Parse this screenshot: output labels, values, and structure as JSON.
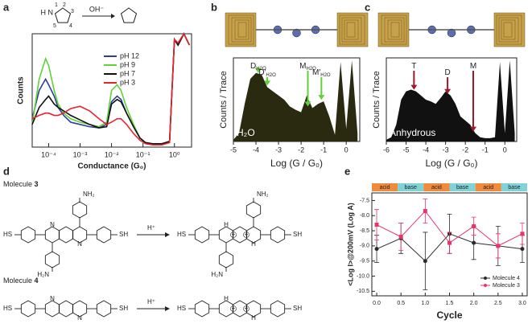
{
  "chart_data": [
    {
      "type": "line",
      "panel": "a",
      "xlabel": "Conductance (G₀)",
      "ylabel": "Counts",
      "xscale": "log",
      "reaction": {
        "reagent": "OH⁻",
        "atom_labels": [
          "1",
          "2",
          "3",
          "4",
          "5"
        ],
        "n": "N",
        "h": "H"
      },
      "x": [
        3e-05,
        5e-05,
        8e-05,
        0.0001,
        0.00015,
        0.0002,
        0.0003,
        0.0005,
        0.001,
        0.002,
        0.004,
        0.007,
        0.01,
        0.015,
        0.02,
        0.03,
        0.05,
        0.08,
        0.12,
        0.2,
        0.4,
        0.7,
        1,
        1.3,
        2,
        3
      ],
      "xlim": [
        3e-05,
        3.5
      ],
      "xticks": [
        {
          "value": 0.0001,
          "label": "10⁻⁴"
        },
        {
          "value": 0.001,
          "label": "10⁻³"
        },
        {
          "value": 0.01,
          "label": "10⁻²"
        },
        {
          "value": 0.1,
          "label": "10⁻¹"
        },
        {
          "value": 1,
          "label": "10⁰"
        }
      ],
      "ylim": [
        0,
        1
      ],
      "legend": "upper center",
      "series": [
        {
          "name": "pH 12",
          "color": "#2c3e9c",
          "values": [
            0.25,
            0.5,
            0.6,
            0.55,
            0.45,
            0.35,
            0.28,
            0.22,
            0.2,
            0.18,
            0.17,
            0.2,
            0.4,
            0.45,
            0.42,
            0.3,
            0.18,
            0.08,
            0.04,
            0.03,
            0.03,
            0.05,
            0.95,
            0.9,
            1,
            0.9
          ]
        },
        {
          "name": "pH 9",
          "color": "#5fd13a",
          "values": [
            0.2,
            0.6,
            0.78,
            0.72,
            0.5,
            0.38,
            0.3,
            0.25,
            0.22,
            0.2,
            0.18,
            0.22,
            0.5,
            0.55,
            0.5,
            0.35,
            0.2,
            0.08,
            0.04,
            0.03,
            0.03,
            0.05,
            0.95,
            0.9,
            1,
            0.9
          ]
        },
        {
          "name": "pH 7",
          "color": "#111111",
          "values": [
            0.2,
            0.35,
            0.42,
            0.45,
            0.38,
            0.35,
            0.32,
            0.28,
            0.24,
            0.2,
            0.17,
            0.18,
            0.38,
            0.42,
            0.4,
            0.3,
            0.18,
            0.08,
            0.04,
            0.03,
            0.03,
            0.05,
            0.95,
            0.9,
            1,
            0.9
          ]
        },
        {
          "name": "pH 3",
          "color": "#e8232e",
          "values": [
            0.25,
            0.28,
            0.3,
            0.3,
            0.28,
            0.28,
            0.3,
            0.34,
            0.36,
            0.32,
            0.25,
            0.2,
            0.22,
            0.25,
            0.25,
            0.2,
            0.12,
            0.06,
            0.03,
            0.02,
            0.02,
            0.04,
            0.95,
            0.92,
            1,
            0.9
          ]
        }
      ]
    },
    {
      "type": "area",
      "panel": "b",
      "xlabel": "Log (G / G₀)",
      "ylabel": "Counts / Trace",
      "medium": "H₂O",
      "color": "#2a2a10",
      "arrow_color": "#5fd13a",
      "x": [
        -5,
        -4.75,
        -4.5,
        -4.25,
        -4,
        -3.75,
        -3.5,
        -3.25,
        -3,
        -2.75,
        -2.5,
        -2.25,
        -2,
        -1.75,
        -1.5,
        -1.25,
        -1,
        -0.75,
        -0.5,
        -0.25,
        0,
        0.25,
        0.5
      ],
      "values": [
        0.02,
        0.1,
        0.45,
        0.75,
        0.82,
        0.8,
        0.65,
        0.6,
        0.55,
        0.5,
        0.42,
        0.38,
        0.35,
        0.55,
        0.4,
        0.45,
        0.48,
        0.3,
        0.08,
        0.95,
        0.15,
        0.97,
        0.1
      ],
      "xlim": [
        -5,
        0.6
      ],
      "xticks": [
        -5,
        -4,
        -3,
        -2,
        -1,
        0
      ],
      "ylim": [
        0,
        1
      ],
      "annotations": [
        {
          "text": "D",
          "sub": "H2O",
          "x": -3.9
        },
        {
          "text": "D′",
          "sub": "H2O",
          "x": -3.5
        },
        {
          "text": "M",
          "sub": "H2O",
          "x": -1.7
        },
        {
          "text": "M′",
          "sub": "H2O",
          "x": -1.1
        }
      ]
    },
    {
      "type": "area",
      "panel": "c",
      "xlabel": "Log (G / G₀)",
      "ylabel": "Counts / Trace",
      "medium": "Anhydrous",
      "color": "#111111",
      "arrow_color": "#a0182a",
      "x": [
        -6,
        -5.75,
        -5.5,
        -5.25,
        -5,
        -4.75,
        -4.5,
        -4.25,
        -4,
        -3.75,
        -3.5,
        -3.25,
        -3,
        -2.75,
        -2.5,
        -2.25,
        -2,
        -1.75,
        -1.5,
        -1.25,
        -1,
        -0.75,
        -0.5,
        -0.25,
        0,
        0.25,
        0.5
      ],
      "values": [
        0.02,
        0.05,
        0.2,
        0.5,
        0.6,
        0.62,
        0.6,
        0.55,
        0.5,
        0.48,
        0.45,
        0.52,
        0.6,
        0.55,
        0.45,
        0.3,
        0.25,
        0.2,
        0.1,
        0.05,
        0.04,
        0.04,
        0.05,
        0.95,
        0.1,
        0.97,
        0.1
      ],
      "xlim": [
        -6,
        0.6
      ],
      "xticks": [
        -6,
        -5,
        -4,
        -3,
        -2,
        -1,
        0
      ],
      "ylim": [
        0,
        1
      ],
      "annotations": [
        {
          "text": "T",
          "x": -4.6
        },
        {
          "text": "D",
          "x": -2.9
        },
        {
          "text": "M",
          "x": -1.6
        }
      ]
    },
    {
      "type": "errorline",
      "panel": "e",
      "xlabel": "Cycle",
      "ylabel": "<Log I>@200mV (Log A)",
      "phases": [
        "acid",
        "base",
        "acid",
        "base",
        "acid",
        "base"
      ],
      "phase_colors": [
        "#f08a3c",
        "#7fd3d6"
      ],
      "x": [
        0,
        0.5,
        1,
        1.5,
        2,
        2.5,
        3
      ],
      "xlim": [
        -0.1,
        3.1
      ],
      "xticks": [
        {
          "value": 0,
          "label": "0.0"
        },
        0.5,
        {
          "value": 1,
          "label": "1.0"
        },
        1.5,
        {
          "value": 2,
          "label": "2.0"
        },
        2.5,
        {
          "value": 3,
          "label": "3.0"
        }
      ],
      "ylim": [
        -7.25,
        -10.65
      ],
      "yticks": [
        -7.5,
        {
          "value": -8,
          "label": "-8.0"
        },
        -8.5,
        {
          "value": -9,
          "label": "-9.0"
        },
        -9.5,
        {
          "value": -10,
          "label": "-10.0"
        },
        -10.5
      ],
      "legend": "lower right",
      "series": [
        {
          "name": "Molecule 4",
          "color": "#2b2b2b",
          "marker": "circle",
          "values": [
            -9.1,
            -8.75,
            -9.5,
            -8.6,
            -8.9,
            -9.0,
            -9.1
          ],
          "errors": [
            0.45,
            0.5,
            0.95,
            0.65,
            0.55,
            0.65,
            0.45
          ]
        },
        {
          "name": "Molecule 3",
          "color": "#e8336b",
          "marker": "square",
          "values": [
            -8.3,
            -8.7,
            -7.85,
            -8.9,
            -8.35,
            -9.0,
            -8.6
          ],
          "errors": [
            0.5,
            0.45,
            0.4,
            0.35,
            0.3,
            0.4,
            0.35
          ]
        }
      ]
    }
  ],
  "diagram": {
    "panel": "d",
    "molecule_3": {
      "label": "Molecule",
      "number": "3"
    },
    "molecule_4": {
      "label": "Molecule",
      "number": "4"
    },
    "thiol_left": "HS",
    "thiol_right": "SH",
    "amine": "NH₂",
    "amine_left": "H₂N",
    "reagent": "H⁺",
    "n": "N",
    "h": "H",
    "plus": "+"
  }
}
